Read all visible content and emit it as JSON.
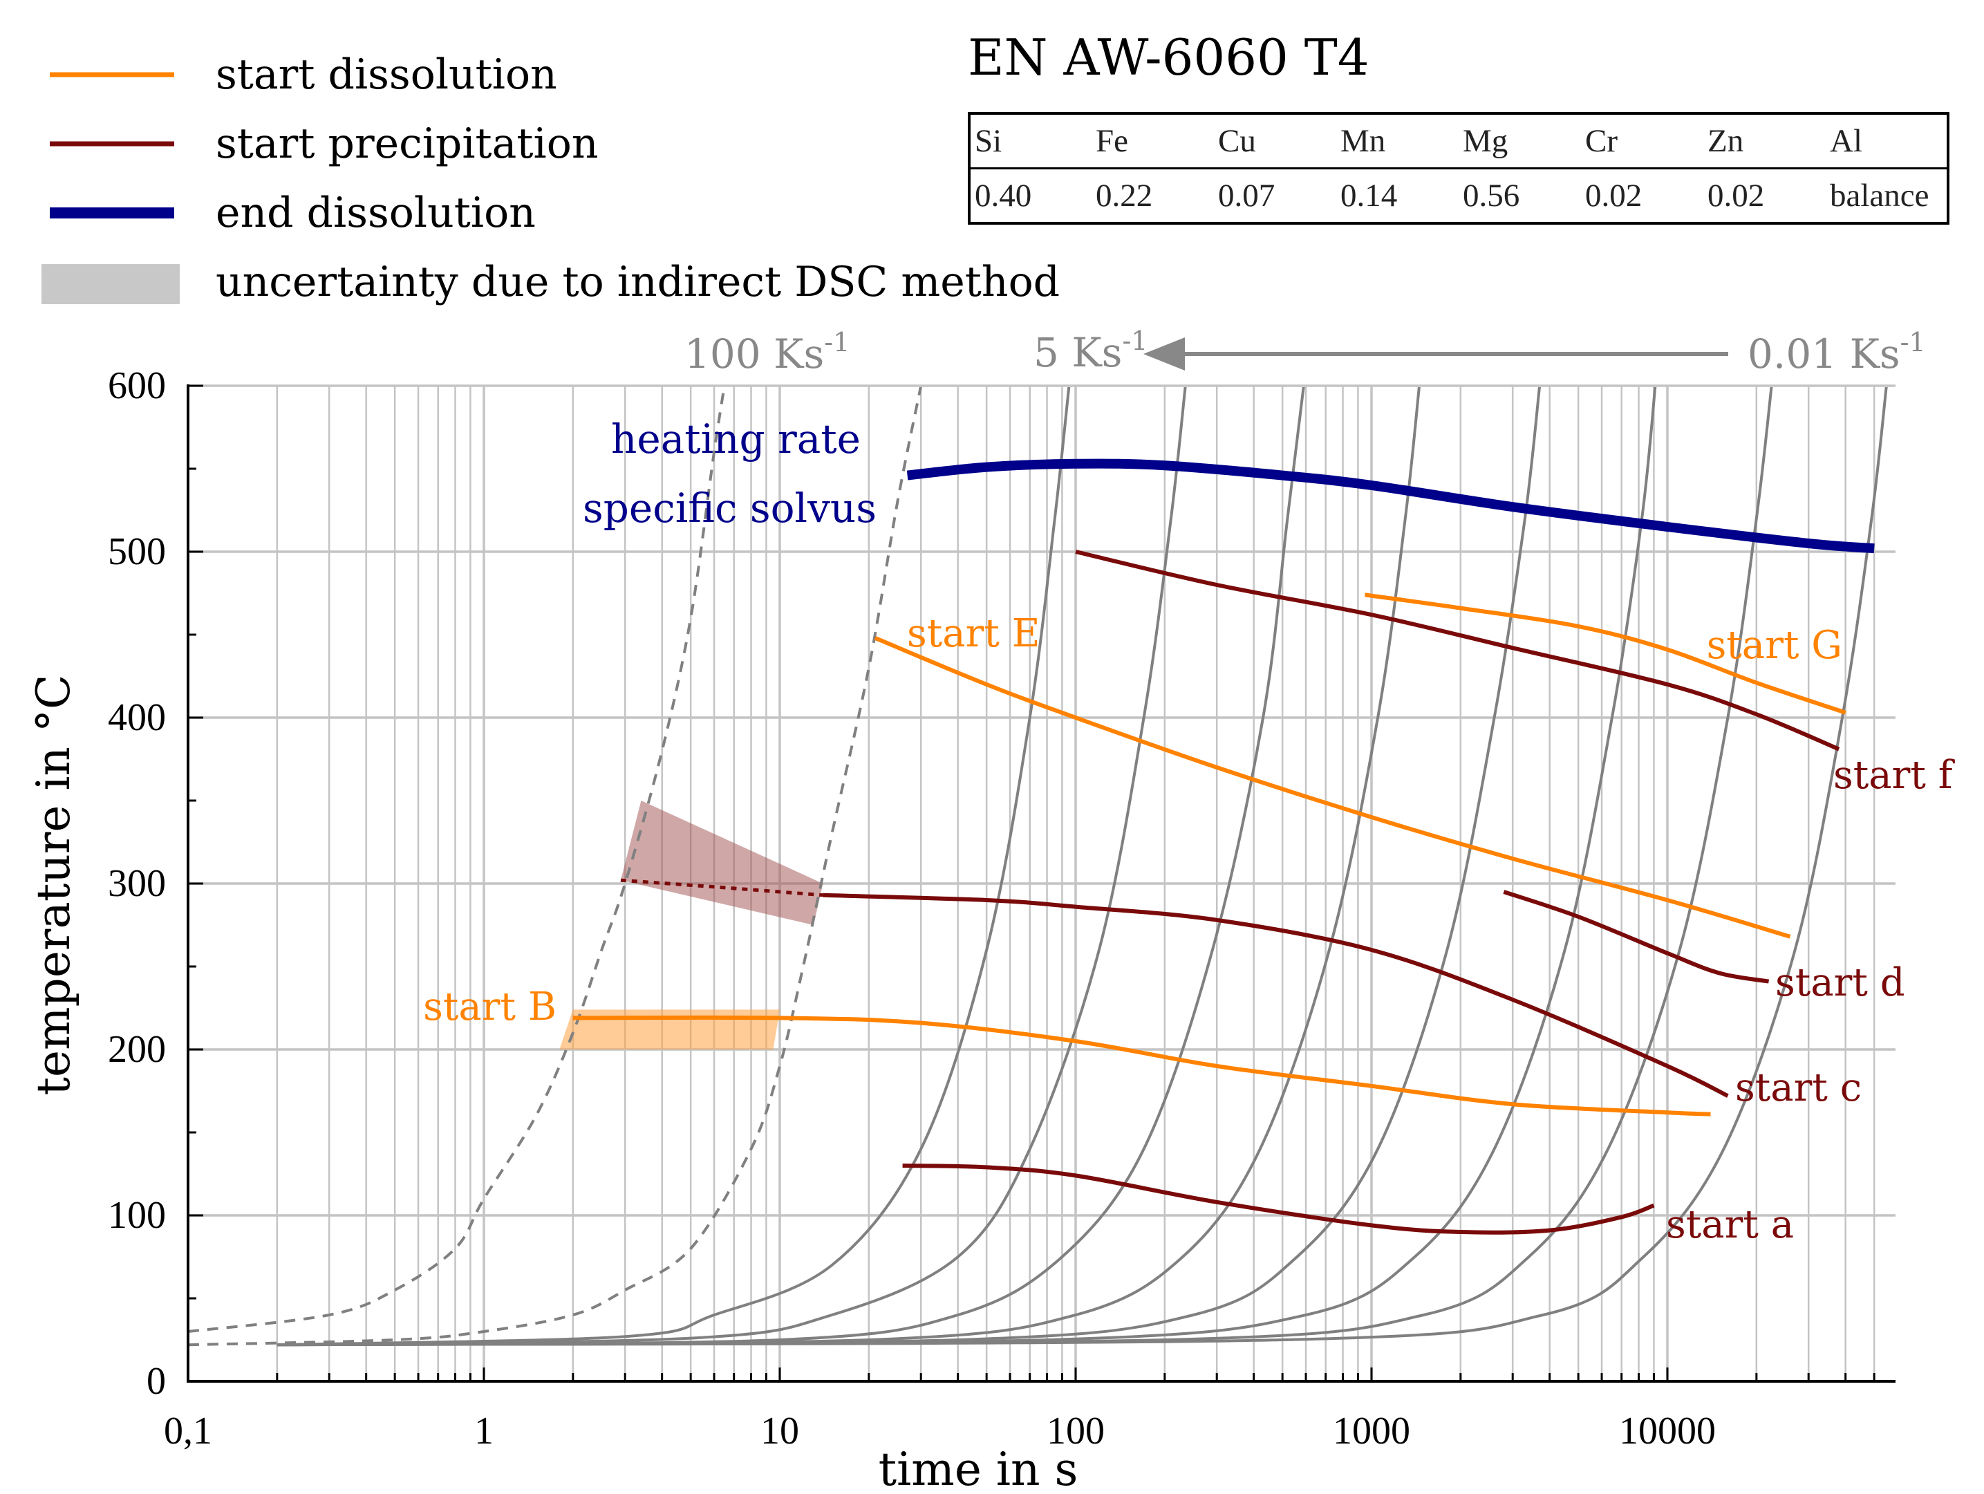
{
  "legend": [
    {
      "label": "start dissolution",
      "color": "#ff8200",
      "style": "line"
    },
    {
      "label": "start precipitation",
      "color": "#7a0a0a",
      "style": "line"
    },
    {
      "label": "end dissolution",
      "color": "#00008b",
      "style": "thick"
    },
    {
      "label": "uncertainty due to indirect DSC method",
      "color": "#c8c8c8",
      "style": "band"
    }
  ],
  "alloy_title": "EN AW-6060 T4",
  "composition": {
    "headers": [
      "Si",
      "Fe",
      "Cu",
      "Mn",
      "Mg",
      "Cr",
      "Zn",
      "Al"
    ],
    "values": [
      "0.40",
      "0.22",
      "0.07",
      "0.14",
      "0.56",
      "0.02",
      "0.02",
      "balance"
    ]
  },
  "rate_labels": {
    "fast_base": "100 Ks",
    "mid_base": "5 Ks",
    "slow_base": "0.01 Ks",
    "exponent": "-1"
  },
  "solvus_label": [
    "heating rate",
    "specific solvus"
  ],
  "colors": {
    "dissolution": "#ff8200",
    "precipitation": "#7a0a0a",
    "solvus": "#00008b",
    "isorate": "#808080",
    "grid": "#c4c4c4"
  },
  "chart_data": {
    "type": "line",
    "xscale": "log",
    "xlabel": "time in s",
    "ylabel": "temperature in °C",
    "xlim": [
      0.1,
      60000
    ],
    "ylim": [
      0,
      600
    ],
    "x_ticks": [
      0.1,
      1,
      10,
      100,
      1000,
      10000
    ],
    "x_tick_labels": [
      "0,1",
      "1",
      "10",
      "100",
      "1000",
      "10000"
    ],
    "y_ticks": [
      0,
      100,
      200,
      300,
      400,
      500,
      600
    ],
    "y_tick_labels": [
      "0",
      "100",
      "200",
      "300",
      "400",
      "500",
      "600"
    ],
    "isorate_curves": {
      "dashed": [
        {
          "points": [
            [
              0.1,
              30
            ],
            [
              0.3,
              40
            ],
            [
              0.5,
              55
            ],
            [
              0.8,
              80
            ],
            [
              1,
              110
            ],
            [
              1.5,
              160
            ],
            [
              2,
              210
            ],
            [
              2.5,
              260
            ],
            [
              3,
              300
            ],
            [
              4,
              380
            ],
            [
              5,
              460
            ],
            [
              6,
              560
            ],
            [
              6.5,
              600
            ]
          ]
        },
        {
          "points": [
            [
              0.1,
              22
            ],
            [
              0.5,
              25
            ],
            [
              1,
              30
            ],
            [
              2,
              40
            ],
            [
              3,
              55
            ],
            [
              5,
              80
            ],
            [
              8,
              140
            ],
            [
              10,
              190
            ],
            [
              12,
              250
            ],
            [
              15,
              330
            ],
            [
              20,
              430
            ],
            [
              25,
              530
            ],
            [
              30,
              600
            ]
          ]
        }
      ],
      "solid": [
        {
          "points": [
            [
              0.2,
              22
            ],
            [
              3,
              27
            ],
            [
              6,
              40
            ],
            [
              15,
              70
            ],
            [
              30,
              140
            ],
            [
              50,
              260
            ],
            [
              70,
              400
            ],
            [
              85,
              520
            ],
            [
              95,
              600
            ]
          ]
        },
        {
          "points": [
            [
              0.2,
              22
            ],
            [
              5,
              26
            ],
            [
              15,
              40
            ],
            [
              40,
              75
            ],
            [
              70,
              140
            ],
            [
              120,
              260
            ],
            [
              170,
              400
            ],
            [
              210,
              520
            ],
            [
              235,
              600
            ]
          ]
        },
        {
          "points": [
            [
              0.2,
              22
            ],
            [
              10,
              25
            ],
            [
              40,
              40
            ],
            [
              90,
              75
            ],
            [
              170,
              140
            ],
            [
              290,
              260
            ],
            [
              430,
              400
            ],
            [
              520,
              520
            ],
            [
              590,
              600
            ]
          ]
        },
        {
          "points": [
            [
              0.2,
              22
            ],
            [
              20,
              25
            ],
            [
              100,
              40
            ],
            [
              230,
              75
            ],
            [
              420,
              140
            ],
            [
              720,
              260
            ],
            [
              1050,
              400
            ],
            [
              1300,
              520
            ],
            [
              1450,
              600
            ]
          ]
        },
        {
          "points": [
            [
              0.2,
              22
            ],
            [
              40,
              25
            ],
            [
              250,
              40
            ],
            [
              560,
              75
            ],
            [
              1050,
              140
            ],
            [
              1800,
              260
            ],
            [
              2600,
              400
            ],
            [
              3300,
              520
            ],
            [
              3700,
              600
            ]
          ]
        },
        {
          "points": [
            [
              0.2,
              22
            ],
            [
              80,
              25
            ],
            [
              600,
              40
            ],
            [
              1400,
              75
            ],
            [
              2600,
              140
            ],
            [
              4500,
              260
            ],
            [
              6500,
              400
            ],
            [
              8200,
              520
            ],
            [
              9100,
              600
            ]
          ]
        },
        {
          "points": [
            [
              0.2,
              22
            ],
            [
              200,
              25
            ],
            [
              1500,
              40
            ],
            [
              3400,
              75
            ],
            [
              6300,
              140
            ],
            [
              11000,
              260
            ],
            [
              16000,
              400
            ],
            [
              20000,
              520
            ],
            [
              22500,
              600
            ]
          ]
        },
        {
          "points": [
            [
              0.2,
              22
            ],
            [
              500,
              25
            ],
            [
              3800,
              40
            ],
            [
              8300,
              75
            ],
            [
              15500,
              140
            ],
            [
              27000,
              260
            ],
            [
              39000,
              400
            ],
            [
              49000,
              520
            ],
            [
              55000,
              600
            ]
          ]
        }
      ]
    },
    "series": [
      {
        "name": "end dissolution",
        "color": "#00008b",
        "width": 14,
        "points": [
          [
            27,
            546
          ],
          [
            50,
            551
          ],
          [
            100,
            553
          ],
          [
            200,
            552
          ],
          [
            500,
            546
          ],
          [
            1000,
            540
          ],
          [
            3000,
            527
          ],
          [
            10000,
            515
          ],
          [
            30000,
            505
          ],
          [
            50000,
            502
          ]
        ]
      },
      {
        "name": "start G",
        "color": "#ff8200",
        "width": 6,
        "points": [
          [
            950,
            474
          ],
          [
            2000,
            466
          ],
          [
            5000,
            455
          ],
          [
            10000,
            441
          ],
          [
            20000,
            421
          ],
          [
            40000,
            403
          ]
        ]
      },
      {
        "name": "start f",
        "color": "#7a0a0a",
        "width": 6,
        "points": [
          [
            100,
            500
          ],
          [
            300,
            480
          ],
          [
            1000,
            462
          ],
          [
            3000,
            442
          ],
          [
            10000,
            420
          ],
          [
            20000,
            402
          ],
          [
            38000,
            381
          ]
        ]
      },
      {
        "name": "start E",
        "color": "#ff8200",
        "width": 6,
        "points": [
          [
            21,
            448
          ],
          [
            50,
            420
          ],
          [
            100,
            400
          ],
          [
            300,
            370
          ],
          [
            1000,
            340
          ],
          [
            3000,
            315
          ],
          [
            10000,
            290
          ],
          [
            26000,
            268
          ]
        ]
      },
      {
        "name": "start d",
        "color": "#7a0a0a",
        "width": 6,
        "points": [
          [
            2800,
            295
          ],
          [
            5000,
            280
          ],
          [
            10000,
            258
          ],
          [
            15000,
            246
          ],
          [
            22000,
            241
          ]
        ]
      },
      {
        "name": "start c",
        "color": "#7a0a0a",
        "width": 6,
        "points": [
          [
            14,
            293
          ],
          [
            50,
            290
          ],
          [
            100,
            286
          ],
          [
            300,
            278
          ],
          [
            1000,
            260
          ],
          [
            3000,
            230
          ],
          [
            10000,
            190
          ],
          [
            16000,
            172
          ]
        ]
      },
      {
        "name": "start c (dotted)",
        "color": "#7a0a0a",
        "width": 5,
        "dashed": true,
        "points": [
          [
            2.9,
            302
          ],
          [
            6,
            298
          ],
          [
            14,
            293
          ]
        ]
      },
      {
        "name": "start B",
        "color": "#ff8200",
        "width": 6,
        "points": [
          [
            2,
            219
          ],
          [
            10,
            219
          ],
          [
            30,
            216
          ],
          [
            100,
            205
          ],
          [
            300,
            190
          ],
          [
            1000,
            178
          ],
          [
            3000,
            167
          ],
          [
            10000,
            162
          ],
          [
            14000,
            161
          ]
        ]
      },
      {
        "name": "start a",
        "color": "#7a0a0a",
        "width": 6,
        "points": [
          [
            26,
            130
          ],
          [
            50,
            129
          ],
          [
            100,
            124
          ],
          [
            300,
            108
          ],
          [
            1000,
            94
          ],
          [
            2000,
            90
          ],
          [
            4000,
            91
          ],
          [
            7000,
            99
          ],
          [
            9000,
            106
          ]
        ]
      }
    ],
    "bands": [
      {
        "name": "uncertainty c",
        "color": "#a05050",
        "opacity": 0.5,
        "upper": [
          [
            3.4,
            350
          ],
          [
            14,
            300
          ]
        ],
        "lower": [
          [
            2.9,
            302
          ],
          [
            13,
            275
          ]
        ]
      },
      {
        "name": "uncertainty B",
        "color": "#ffa040",
        "opacity": 0.55,
        "upper": [
          [
            2,
            224
          ],
          [
            10,
            224
          ]
        ],
        "lower": [
          [
            1.8,
            200
          ],
          [
            9.5,
            200
          ]
        ]
      }
    ],
    "annotations": [
      {
        "text": "start G",
        "color": "#ff8200",
        "anchor": "end"
      },
      {
        "text": "start f",
        "color": "#7a0a0a",
        "anchor": "start"
      },
      {
        "text": "start E",
        "color": "#ff8200",
        "anchor": "start"
      },
      {
        "text": "start d",
        "color": "#7a0a0a",
        "anchor": "start"
      },
      {
        "text": "start c",
        "color": "#7a0a0a",
        "anchor": "start"
      },
      {
        "text": "start B",
        "color": "#ff8200",
        "anchor": "end"
      },
      {
        "text": "start a",
        "color": "#7a0a0a",
        "anchor": "start"
      }
    ]
  }
}
